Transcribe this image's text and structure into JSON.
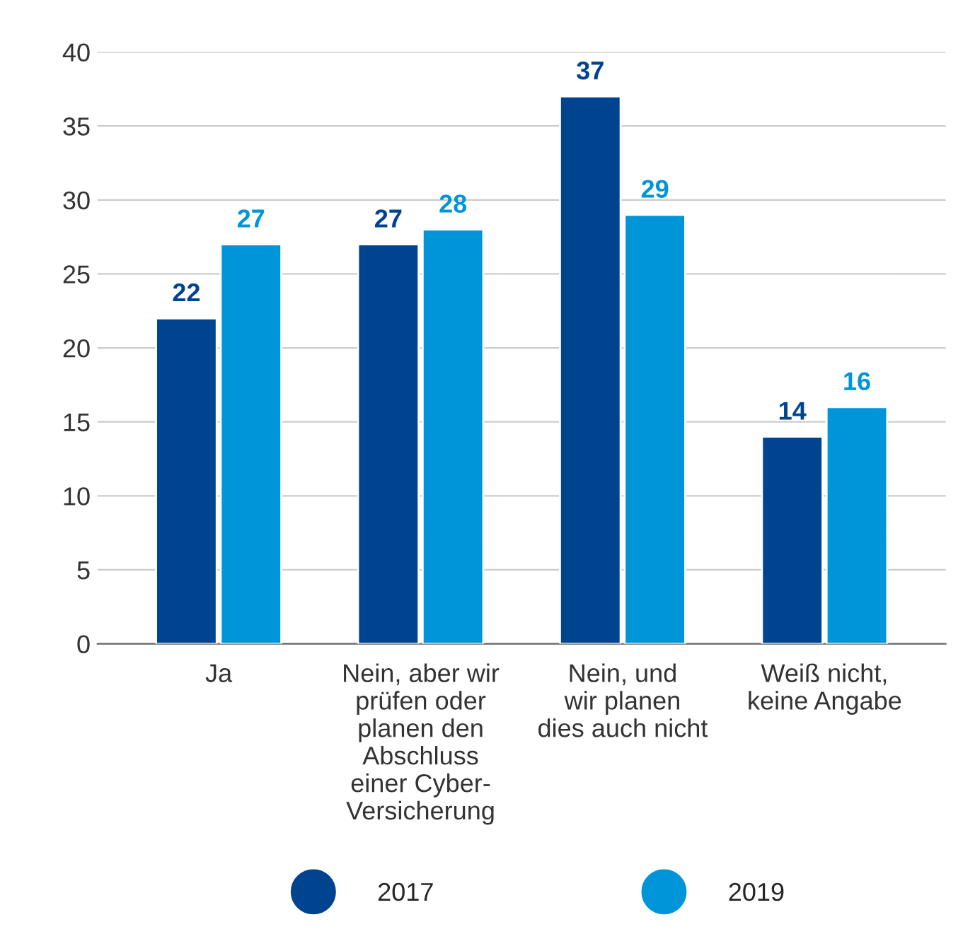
{
  "chart_data": {
    "type": "bar",
    "categories": [
      "Ja",
      "Nein, aber wir\nprüfen oder\nplanen den\nAbschluss\neiner Cyber-\nVersicherung",
      "Nein, und\nwir planen\ndies auch nicht",
      "Weiß nicht,\nkeine Angabe"
    ],
    "series": [
      {
        "name": "2017",
        "color": "#00438f",
        "values": [
          22,
          27,
          37,
          14
        ]
      },
      {
        "name": "2019",
        "color": "#0095d8",
        "values": [
          27,
          28,
          29,
          16
        ]
      }
    ],
    "ylim": [
      0,
      40
    ],
    "yticks": [
      0,
      5,
      10,
      15,
      20,
      25,
      30,
      35,
      40
    ],
    "grid": "y",
    "legend": "bottom",
    "data_labels": true
  }
}
